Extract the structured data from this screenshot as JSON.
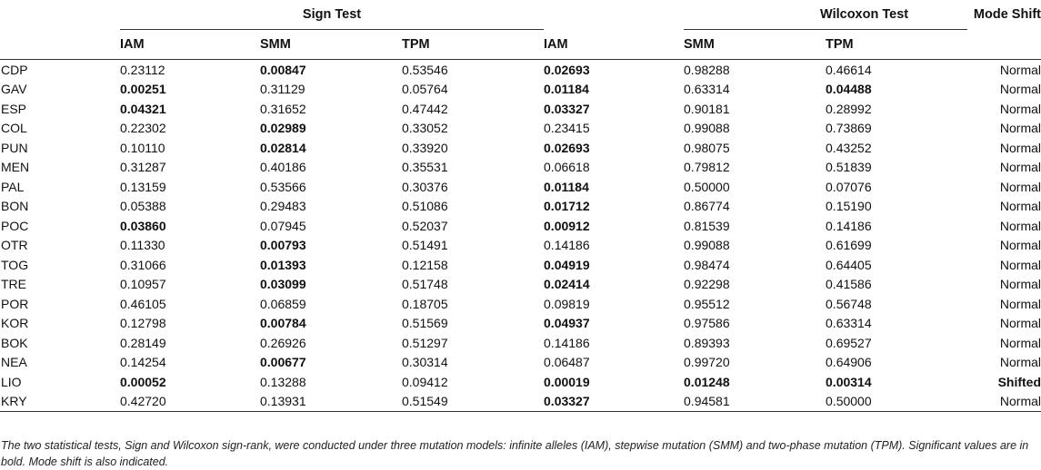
{
  "header": {
    "sign_test": "Sign Test",
    "wilcoxon_test": "Wilcoxon Test",
    "mode_shift": "Mode Shift",
    "sign_cols": [
      "IAM",
      "SMM",
      "TPM"
    ],
    "wilcoxon_cols": [
      "IAM",
      "SMM",
      "TPM"
    ]
  },
  "rows": [
    {
      "site": "CDP",
      "v": [
        "0.23112",
        "0.00847",
        "0.53546",
        "0.02693",
        "0.98288",
        "0.46614"
      ],
      "bold": [
        0,
        1,
        0,
        1,
        0,
        0
      ],
      "shift": "Normal",
      "shift_bold": false
    },
    {
      "site": "GAV",
      "v": [
        "0.00251",
        "0.31129",
        "0.05764",
        "0.01184",
        "0.63314",
        "0.04488"
      ],
      "bold": [
        1,
        0,
        0,
        1,
        0,
        1
      ],
      "shift": "Normal",
      "shift_bold": false
    },
    {
      "site": "ESP",
      "v": [
        "0.04321",
        "0.31652",
        "0.47442",
        "0.03327",
        "0.90181",
        "0.28992"
      ],
      "bold": [
        1,
        0,
        0,
        1,
        0,
        0
      ],
      "shift": "Normal",
      "shift_bold": false
    },
    {
      "site": "COL",
      "v": [
        "0.22302",
        "0.02989",
        "0.33052",
        "0.23415",
        "0.99088",
        "0.73869"
      ],
      "bold": [
        0,
        1,
        0,
        0,
        0,
        0
      ],
      "shift": "Normal",
      "shift_bold": false
    },
    {
      "site": "PUN",
      "v": [
        "0.10110",
        "0.02814",
        "0.33920",
        "0.02693",
        "0.98075",
        "0.43252"
      ],
      "bold": [
        0,
        1,
        0,
        1,
        0,
        0
      ],
      "shift": "Normal",
      "shift_bold": false
    },
    {
      "site": "MEN",
      "v": [
        "0.31287",
        "0.40186",
        "0.35531",
        "0.06618",
        "0.79812",
        "0.51839"
      ],
      "bold": [
        0,
        0,
        0,
        0,
        0,
        0
      ],
      "shift": "Normal",
      "shift_bold": false
    },
    {
      "site": "PAL",
      "v": [
        "0.13159",
        "0.53566",
        "0.30376",
        "0.01184",
        "0.50000",
        "0.07076"
      ],
      "bold": [
        0,
        0,
        0,
        1,
        0,
        0
      ],
      "shift": "Normal",
      "shift_bold": false
    },
    {
      "site": "BON",
      "v": [
        "0.05388",
        "0.29483",
        "0.51086",
        "0.01712",
        "0.86774",
        "0.15190"
      ],
      "bold": [
        0,
        0,
        0,
        1,
        0,
        0
      ],
      "shift": "Normal",
      "shift_bold": false
    },
    {
      "site": "POC",
      "v": [
        "0.03860",
        "0.07945",
        "0.52037",
        "0.00912",
        "0.81539",
        "0.14186"
      ],
      "bold": [
        1,
        0,
        0,
        1,
        0,
        0
      ],
      "shift": "Normal",
      "shift_bold": false
    },
    {
      "site": "OTR",
      "v": [
        "0.11330",
        "0.00793",
        "0.51491",
        "0.14186",
        "0.99088",
        "0.61699"
      ],
      "bold": [
        0,
        1,
        0,
        0,
        0,
        0
      ],
      "shift": "Normal",
      "shift_bold": false
    },
    {
      "site": "TOG",
      "v": [
        "0.31066",
        "0.01393",
        "0.12158",
        "0.04919",
        "0.98474",
        "0.64405"
      ],
      "bold": [
        0,
        1,
        0,
        1,
        0,
        0
      ],
      "shift": "Normal",
      "shift_bold": false
    },
    {
      "site": "TRE",
      "v": [
        "0.10957",
        "0.03099",
        "0.51748",
        "0.02414",
        "0.92298",
        "0.41586"
      ],
      "bold": [
        0,
        1,
        0,
        1,
        0,
        0
      ],
      "shift": "Normal",
      "shift_bold": false
    },
    {
      "site": "POR",
      "v": [
        "0.46105",
        "0.06859",
        "0.18705",
        "0.09819",
        "0.95512",
        "0.56748"
      ],
      "bold": [
        0,
        0,
        0,
        0,
        0,
        0
      ],
      "shift": "Normal",
      "shift_bold": false
    },
    {
      "site": "KOR",
      "v": [
        "0.12798",
        "0.00784",
        "0.51569",
        "0.04937",
        "0.97586",
        "0.63314"
      ],
      "bold": [
        0,
        1,
        0,
        1,
        0,
        0
      ],
      "shift": "Normal",
      "shift_bold": false
    },
    {
      "site": "BOK",
      "v": [
        "0.28149",
        "0.26926",
        "0.51297",
        "0.14186",
        "0.89393",
        "0.69527"
      ],
      "bold": [
        0,
        0,
        0,
        0,
        0,
        0
      ],
      "shift": "Normal",
      "shift_bold": false
    },
    {
      "site": "NEA",
      "v": [
        "0.14254",
        "0.00677",
        "0.30314",
        "0.06487",
        "0.99720",
        "0.64906"
      ],
      "bold": [
        0,
        1,
        0,
        0,
        0,
        0
      ],
      "shift": "Normal",
      "shift_bold": false
    },
    {
      "site": "LIO",
      "v": [
        "0.00052",
        "0.13288",
        "0.09412",
        "0.00019",
        "0.01248",
        "0.00314"
      ],
      "bold": [
        1,
        0,
        0,
        1,
        1,
        1
      ],
      "shift": "Shifted",
      "shift_bold": true
    },
    {
      "site": "KRY",
      "v": [
        "0.42720",
        "0.13931",
        "0.51549",
        "0.03327",
        "0.94581",
        "0.50000"
      ],
      "bold": [
        0,
        0,
        0,
        1,
        0,
        0
      ],
      "shift": "Normal",
      "shift_bold": false
    }
  ],
  "note": "The two statistical tests, Sign and Wilcoxon sign-rank, were conducted under three mutation models: infinite alleles (IAM), stepwise mutation (SMM) and two-phase mutation (TPM). Significant values are in bold. Mode shift is also indicated."
}
